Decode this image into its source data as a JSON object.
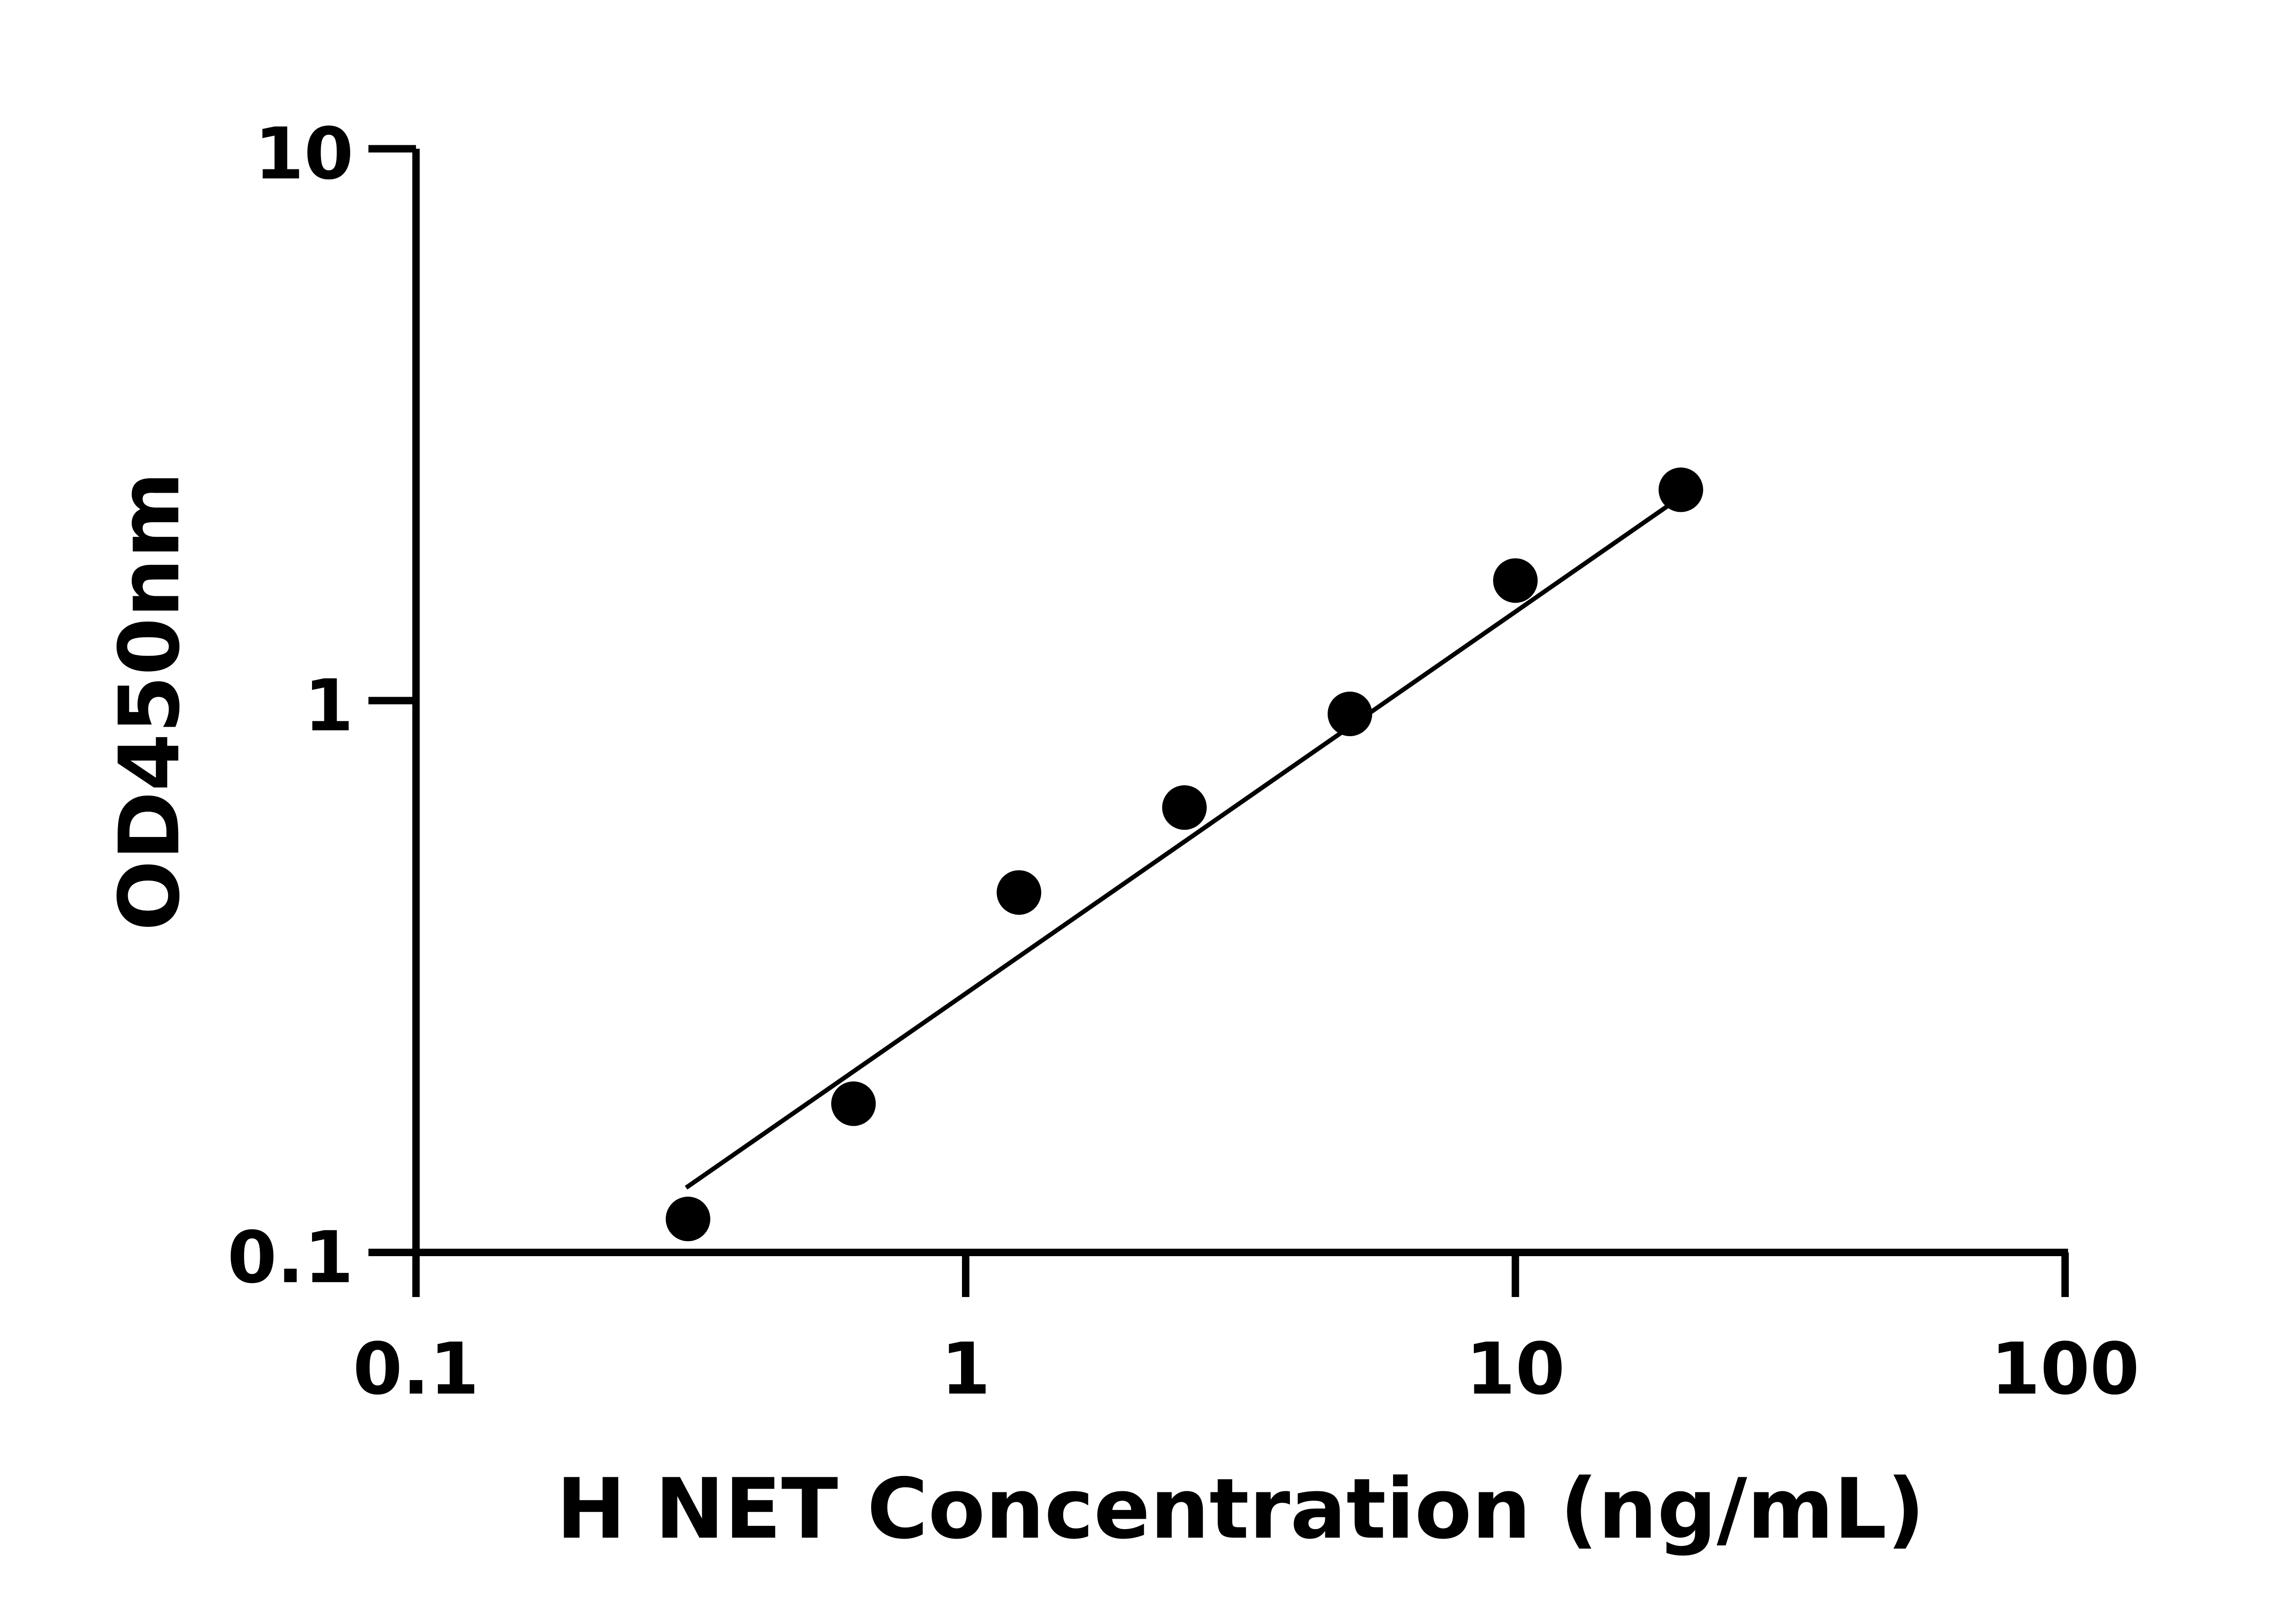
{
  "chart_data": {
    "type": "scatter",
    "title": "",
    "xlabel": "H NET Concentration (ng/mL)",
    "ylabel": "OD450nm",
    "x_scale": "log",
    "y_scale": "log",
    "xlim": [
      0.1,
      100
    ],
    "ylim": [
      0.1,
      10
    ],
    "x_ticks": [
      0.1,
      1,
      10,
      100
    ],
    "x_tick_labels": [
      "0.1",
      "1",
      "10",
      "100"
    ],
    "y_ticks": [
      0.1,
      1,
      10
    ],
    "y_tick_labels": [
      "0.1",
      "1",
      "10"
    ],
    "grid": false,
    "series": [
      {
        "x": [
          0.3125,
          0.625,
          1.25,
          2.5,
          5,
          10,
          20
        ],
        "y": [
          0.115,
          0.186,
          0.449,
          0.64,
          0.946,
          1.65,
          2.41
        ],
        "color": "#000000"
      }
    ],
    "fit_line": {
      "x": [
        0.31,
        20
      ],
      "y": [
        0.131,
        2.34
      ],
      "color": "#000000"
    }
  }
}
